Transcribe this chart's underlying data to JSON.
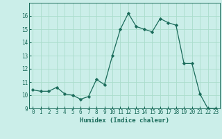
{
  "x": [
    0,
    1,
    2,
    3,
    4,
    5,
    6,
    7,
    8,
    9,
    10,
    11,
    12,
    13,
    14,
    15,
    16,
    17,
    18,
    19,
    20,
    21,
    22,
    23
  ],
  "y": [
    10.4,
    10.3,
    10.3,
    10.6,
    10.1,
    10.0,
    9.7,
    9.9,
    11.2,
    10.8,
    13.0,
    15.0,
    16.2,
    15.2,
    15.0,
    14.8,
    15.8,
    15.5,
    15.3,
    12.4,
    12.4,
    10.1,
    9.0,
    9.0
  ],
  "line_color": "#1a6b5a",
  "marker": "D",
  "marker_size": 2.2,
  "bg_color": "#cbeee9",
  "grid_color": "#aaddcc",
  "xlabel": "Humidex (Indice chaleur)",
  "ylim": [
    9,
    17
  ],
  "xlim": [
    -0.5,
    23.5
  ],
  "yticks": [
    9,
    10,
    11,
    12,
    13,
    14,
    15,
    16
  ],
  "xticks": [
    0,
    1,
    2,
    3,
    4,
    5,
    6,
    7,
    8,
    9,
    10,
    11,
    12,
    13,
    14,
    15,
    16,
    17,
    18,
    19,
    20,
    21,
    22,
    23
  ],
  "tick_label_color": "#1a6b5a",
  "xlabel_fontsize": 6.5,
  "tick_fontsize": 5.5,
  "linewidth": 0.9
}
